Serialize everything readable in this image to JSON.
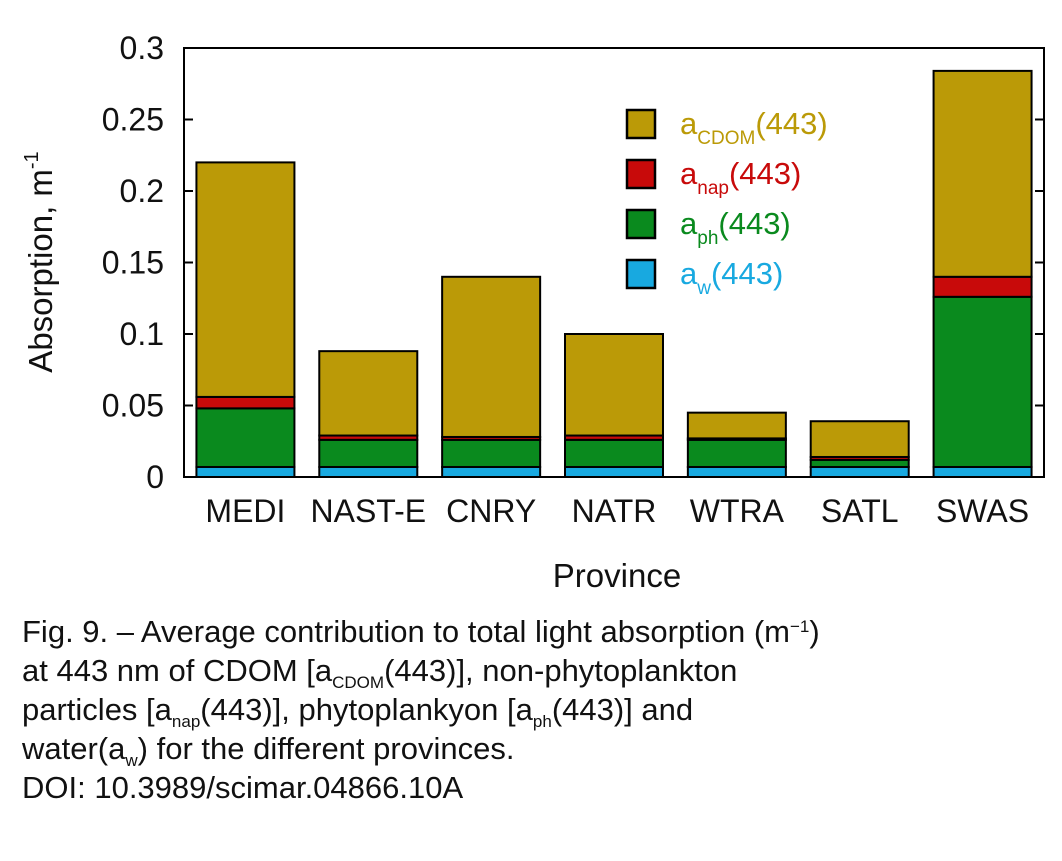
{
  "chart_data": {
    "type": "bar",
    "stacked": true,
    "xlabel": "Province",
    "ylabel_main": "Absorption, m",
    "ylabel_sup": "-1",
    "ylim": [
      0,
      0.3
    ],
    "yticks": [
      {
        "value": 0,
        "label": "0"
      },
      {
        "value": 0.05,
        "label": "0.05"
      },
      {
        "value": 0.1,
        "label": "0.1"
      },
      {
        "value": 0.15,
        "label": "0.15"
      },
      {
        "value": 0.2,
        "label": "0.2"
      },
      {
        "value": 0.25,
        "label": "0.25"
      },
      {
        "value": 0.3,
        "label": "0.3"
      }
    ],
    "grid": false,
    "legend_position": "top-right",
    "categories": [
      "MEDI",
      "NAST-E",
      "CNRY",
      "NATR",
      "WTRA",
      "SATL",
      "SWAS"
    ],
    "series": [
      {
        "key": "aw",
        "color": "#18a9e0",
        "legend_main": "a",
        "legend_sub": "w",
        "legend_tail": "(443)",
        "values": [
          0.007,
          0.007,
          0.007,
          0.007,
          0.007,
          0.007,
          0.007
        ]
      },
      {
        "key": "aph",
        "color": "#0a8a1e",
        "legend_main": "a",
        "legend_sub": "ph",
        "legend_tail": "(443)",
        "values": [
          0.041,
          0.019,
          0.019,
          0.019,
          0.019,
          0.005,
          0.119
        ]
      },
      {
        "key": "anap",
        "color": "#c80a0a",
        "legend_main": "a",
        "legend_sub": "nap",
        "legend_tail": "(443)",
        "values": [
          0.008,
          0.003,
          0.002,
          0.003,
          0.001,
          0.002,
          0.014
        ]
      },
      {
        "key": "acdom",
        "color": "#bb9a07",
        "legend_main": "a",
        "legend_sub": "CDOM",
        "legend_tail": "(443)",
        "values": [
          0.164,
          0.059,
          0.112,
          0.071,
          0.018,
          0.025,
          0.144
        ]
      }
    ]
  },
  "caption": {
    "line1_a": "Fig. 9. – Average contribution to total light absorption (m",
    "line1_sup": "−1",
    "line1_b": ")",
    "line2_a": "at 443 nm of CDOM [a",
    "line2_sub": "CDOM",
    "line2_b": "(443)], non-phytoplankton",
    "line3_a": "particles [a",
    "line3_sub": "nap",
    "line3_b": "(443)], phytoplankyon [a",
    "line3_sub2": "ph",
    "line3_c": "(443)] and",
    "line4_a": "water(a",
    "line4_sub": "w",
    "line4_b": ") for the different provinces.",
    "line5": "DOI: 10.3989/scimar.04866.10A"
  }
}
